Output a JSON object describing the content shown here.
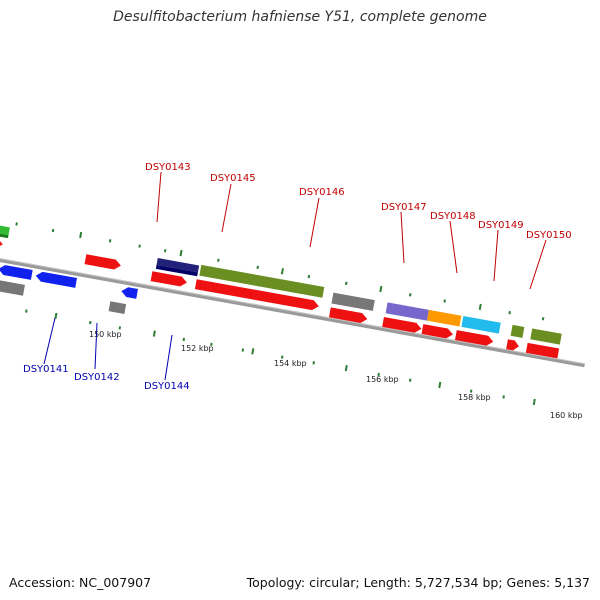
{
  "title": "Desulfitobacterium hafniense Y51, complete genome",
  "accession": "Accession: NC_007907",
  "topology": "Topology: circular; Length: 5,727,534 bp; Genes: 5,137",
  "scale_labels": [
    "150 kbp",
    "152 kbp",
    "154 kbp",
    "156 kbp",
    "158 kbp",
    "160 kbp"
  ],
  "gene_labels_top": [
    "DSY0143",
    "DSY0145",
    "DSY0146",
    "DSY0147",
    "DSY0148",
    "DSY0149",
    "DSY0150"
  ],
  "gene_labels_bottom": [
    "DSY0141",
    "DSY0142",
    "DSY0144"
  ],
  "colors": {
    "cds_red": "#ee1111",
    "cds_blue": "#1122ee",
    "gray": "#777777",
    "olive": "#6b8e23",
    "green": "#33bb33",
    "navy": "#22227a",
    "purple": "#7766cc",
    "orange": "#ff9900",
    "cyan": "#22bbee",
    "tick": "#2e7d32",
    "backbone": "#888888"
  }
}
